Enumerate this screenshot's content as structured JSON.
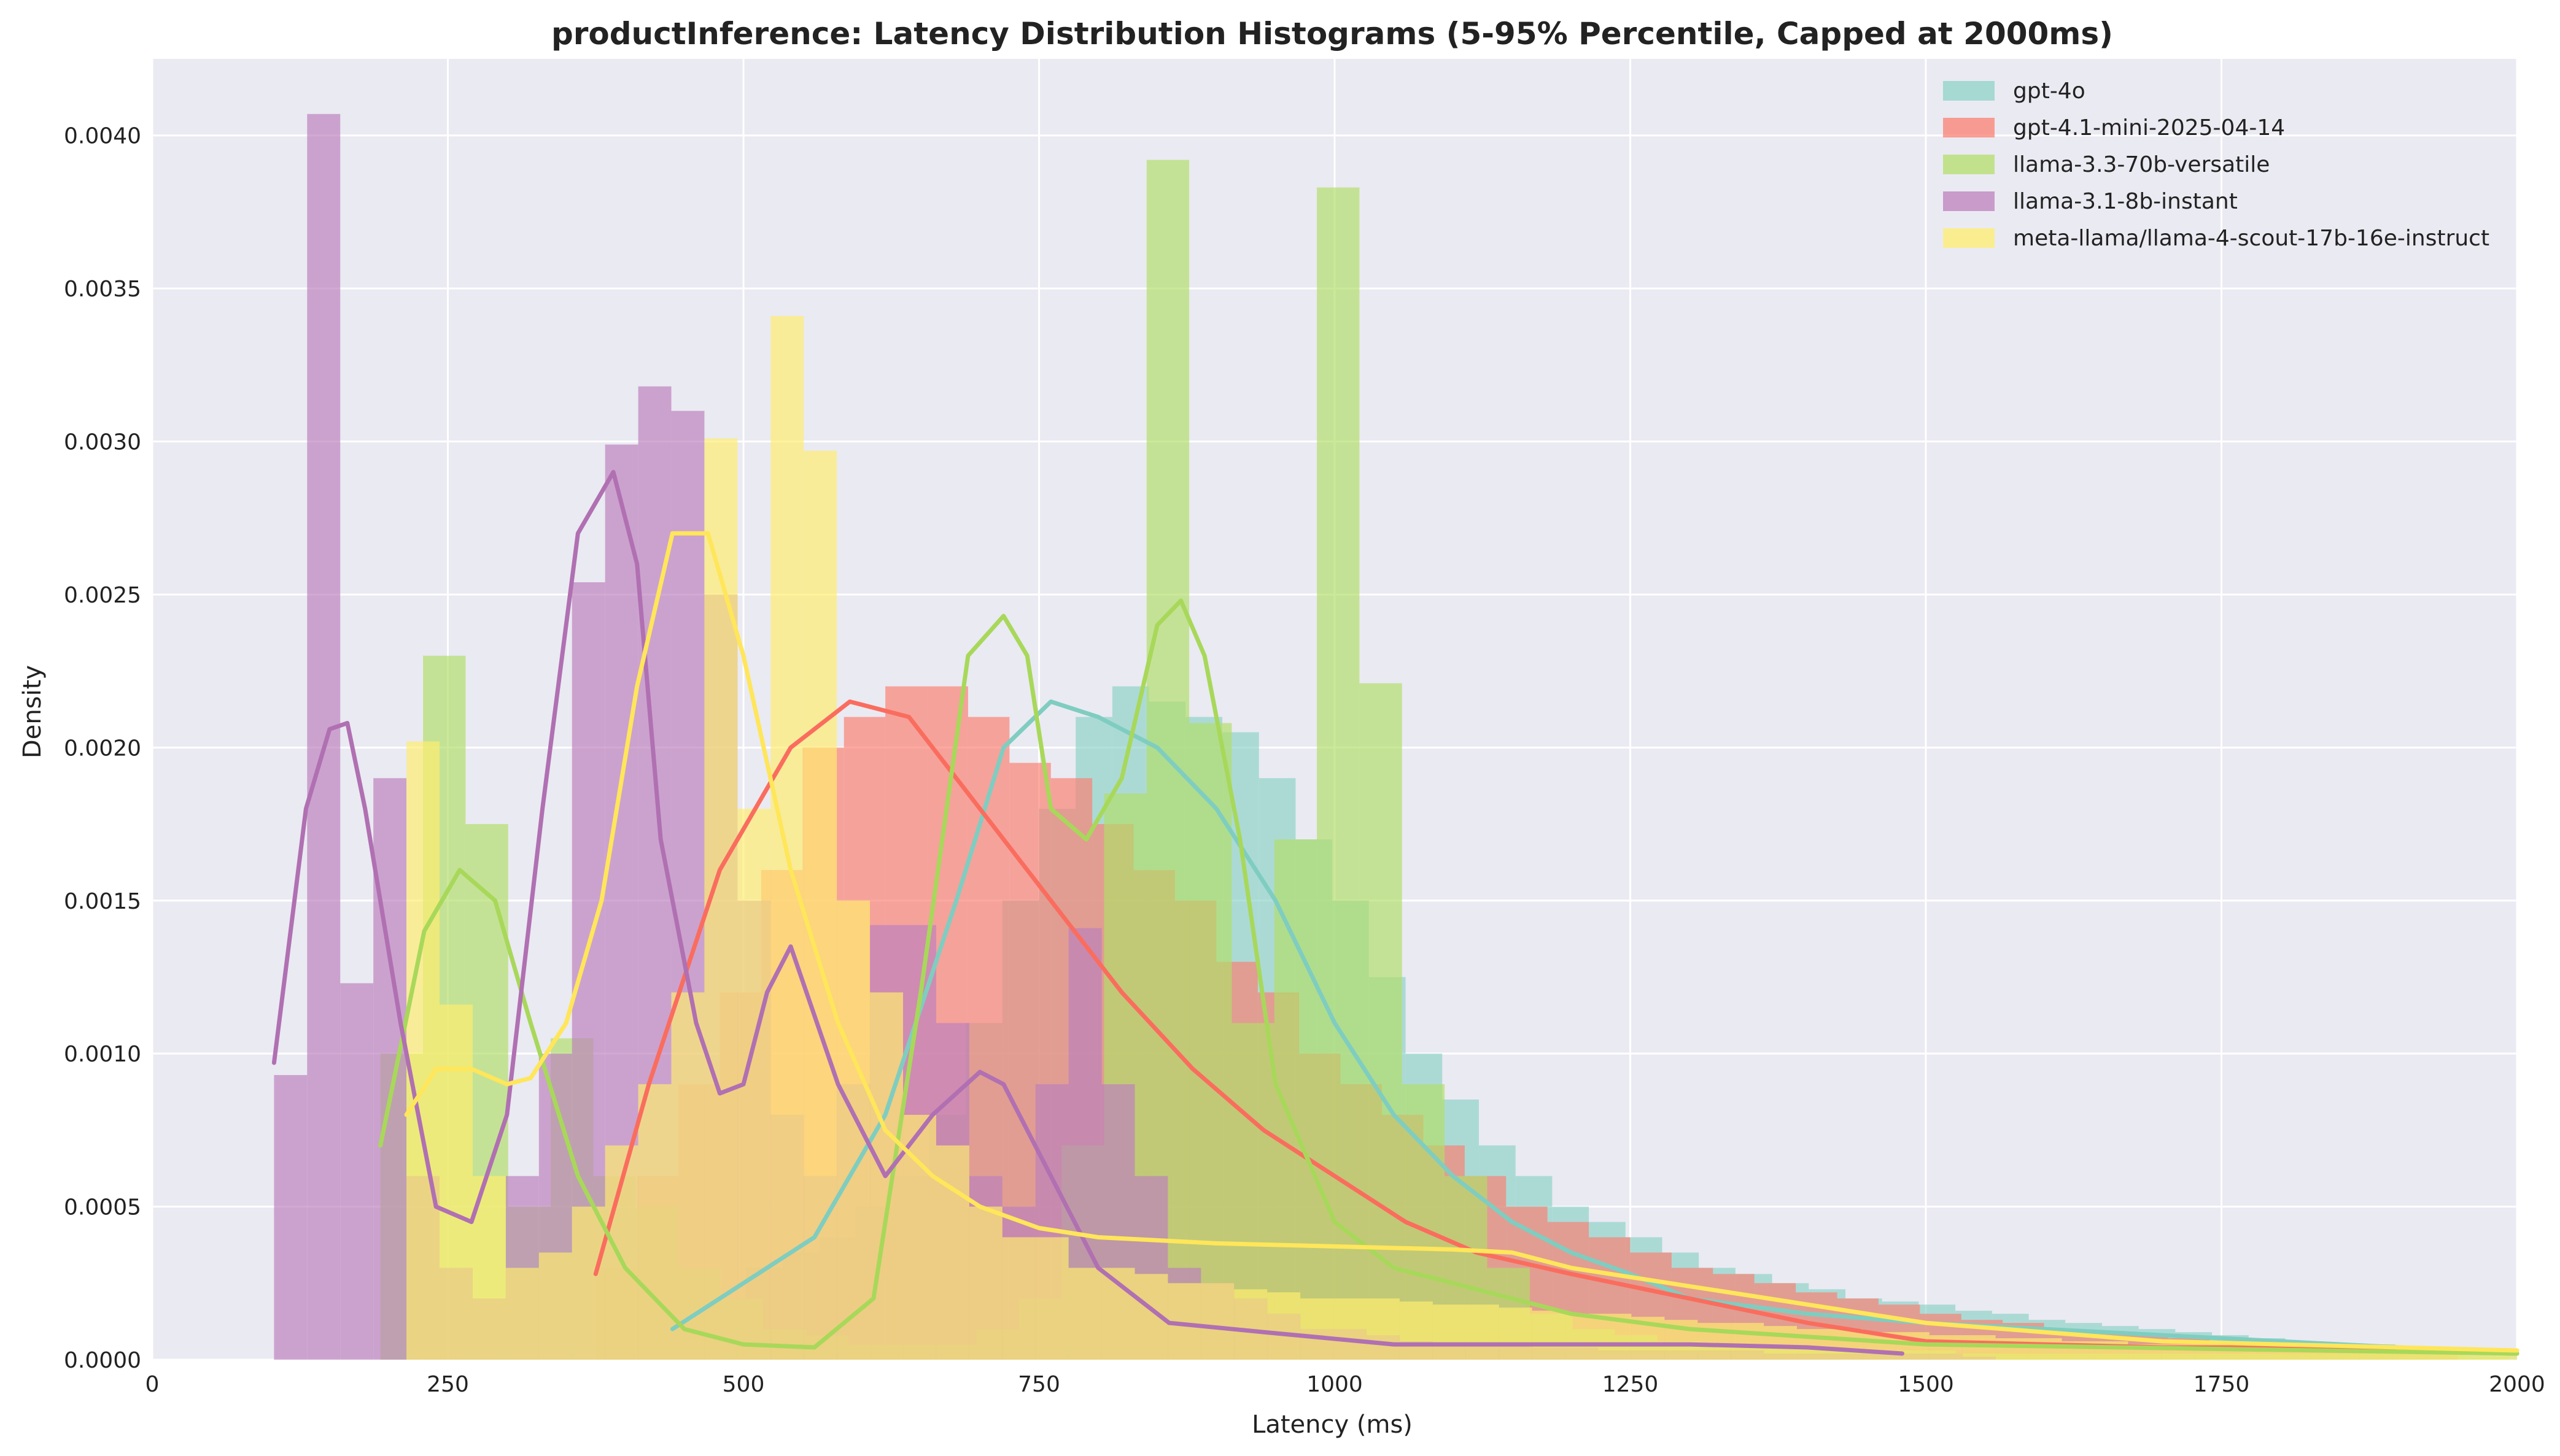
{
  "chart_data": {
    "type": "histogram",
    "title": "productInference: Latency Distribution Histograms (5-95% Percentile, Capped at 2000ms)",
    "xlabel": "Latency (ms)",
    "ylabel": "Density",
    "xlim": [
      0,
      2000
    ],
    "ylim": [
      0,
      0.00425
    ],
    "x_ticks": [
      0,
      250,
      500,
      750,
      1000,
      1250,
      1500,
      1750,
      2000
    ],
    "x_tick_labels": [
      "0",
      "250",
      "500",
      "750",
      "1000",
      "1250",
      "1500",
      "1750",
      "2000"
    ],
    "y_ticks": [
      0,
      0.0005,
      0.001,
      0.0015,
      0.002,
      0.0025,
      0.003,
      0.0035,
      0.004
    ],
    "y_tick_labels": [
      "0.0000",
      "0.0005",
      "0.0010",
      "0.0015",
      "0.0020",
      "0.0025",
      "0.0030",
      "0.0035",
      "0.0040"
    ],
    "grid": true,
    "legend_position": "top-right",
    "background_color": "#eaeaf2",
    "series": [
      {
        "name": "gpt-4o",
        "color": "#8dd3c7",
        "bin_start": 440,
        "bin_width": 31,
        "values": [
          0.0001,
          0.0002,
          0.0003,
          0.00035,
          0.0004,
          0.0005,
          0.0006,
          0.0008,
          0.0011,
          0.0015,
          0.0018,
          0.0021,
          0.0022,
          0.00215,
          0.0021,
          0.00205,
          0.0019,
          0.0017,
          0.0015,
          0.00125,
          0.001,
          0.00085,
          0.0007,
          0.0006,
          0.0005,
          0.00045,
          0.0004,
          0.00035,
          0.0003,
          0.00028,
          0.00025,
          0.00023,
          0.0002,
          0.00019,
          0.00018,
          0.00016,
          0.00015,
          0.00013,
          0.00012,
          0.00011,
          0.0001,
          9e-05,
          8e-05,
          7e-05,
          6e-05,
          5e-05,
          5e-05,
          4e-05,
          4e-05,
          3e-05,
          3e-05
        ],
        "kde_x": [
          440,
          500,
          560,
          620,
          680,
          720,
          760,
          800,
          850,
          900,
          950,
          1000,
          1050,
          1100,
          1150,
          1200,
          1250,
          1300,
          1400,
          1500,
          1600,
          1700,
          1800,
          1900,
          2000
        ],
        "kde_y": [
          0.0001,
          0.00025,
          0.0004,
          0.0008,
          0.0015,
          0.002,
          0.00215,
          0.0021,
          0.002,
          0.0018,
          0.0015,
          0.0011,
          0.0008,
          0.0006,
          0.00045,
          0.00035,
          0.00028,
          0.0002,
          0.00015,
          0.00012,
          0.0001,
          8e-05,
          6e-05,
          4e-05,
          2e-05
        ]
      },
      {
        "name": "gpt-4.1-mini-2025-04-14",
        "color": "#fb8072",
        "bin_start": 375,
        "bin_width": 35,
        "values": [
          0.0003,
          0.0006,
          0.0009,
          0.0012,
          0.0016,
          0.002,
          0.0021,
          0.0022,
          0.0022,
          0.0021,
          0.00195,
          0.0019,
          0.00175,
          0.0016,
          0.0015,
          0.0013,
          0.0012,
          0.001,
          0.0009,
          0.0008,
          0.0007,
          0.0006,
          0.0005,
          0.00045,
          0.0004,
          0.00035,
          0.0003,
          0.00028,
          0.00025,
          0.00022,
          0.0002,
          0.00018,
          0.00015,
          0.00013,
          0.00012,
          0.0001,
          9e-05,
          8e-05,
          7e-05,
          6e-05,
          5e-05,
          5e-05,
          4e-05,
          4e-05,
          3e-05
        ],
        "kde_x": [
          375,
          420,
          480,
          540,
          590,
          640,
          700,
          760,
          820,
          880,
          940,
          1000,
          1060,
          1120,
          1200,
          1300,
          1400,
          1500,
          1600,
          1700,
          1800,
          1900,
          2000
        ],
        "kde_y": [
          0.00028,
          0.0009,
          0.0016,
          0.002,
          0.00215,
          0.0021,
          0.0018,
          0.0015,
          0.0012,
          0.00095,
          0.00075,
          0.0006,
          0.00045,
          0.00035,
          0.00028,
          0.0002,
          0.00012,
          6e-05,
          5e-05,
          4e-05,
          4e-05,
          3e-05,
          2e-05
        ]
      },
      {
        "name": "llama-3.3-70b-versatile",
        "color": "#b3de69",
        "bin_start": 193,
        "bin_width": 36,
        "values": [
          0.001,
          0.0023,
          0.00175,
          0.0005,
          0.00105,
          0.0006,
          0.0005,
          0.0003,
          0.0002,
          0.0001,
          8e-05,
          5e-05,
          5e-05,
          5e-05,
          0.0001,
          0.0002,
          0.0007,
          0.00185,
          0.00392,
          0.00208,
          0.0011,
          0.0017,
          0.00383,
          0.00221,
          0.0009,
          0.0006,
          0.0003,
          0.00015,
          0.0001,
          8e-05,
          6e-05,
          5e-05,
          4e-05,
          4e-05,
          3e-05,
          3e-05,
          3e-05,
          2e-05,
          2e-05,
          2e-05,
          2e-05,
          2e-05,
          2e-05,
          2e-05,
          2e-05,
          2e-05,
          2e-05,
          2e-05,
          2e-05,
          1e-05
        ],
        "kde_x": [
          193,
          230,
          260,
          290,
          320,
          360,
          400,
          450,
          500,
          560,
          610,
          650,
          690,
          720,
          740,
          760,
          790,
          820,
          850,
          870,
          890,
          920,
          950,
          1000,
          1050,
          1100,
          1200,
          1300,
          1500,
          2000
        ],
        "kde_y": [
          0.0007,
          0.0014,
          0.0016,
          0.0015,
          0.0011,
          0.0006,
          0.0003,
          0.0001,
          5e-05,
          4e-05,
          0.0002,
          0.0012,
          0.0023,
          0.00243,
          0.0023,
          0.0018,
          0.0017,
          0.0019,
          0.0024,
          0.00248,
          0.0023,
          0.0017,
          0.0009,
          0.00045,
          0.0003,
          0.00025,
          0.00015,
          0.0001,
          5e-05,
          2e-05
        ]
      },
      {
        "name": "llama-3.1-8b-instant",
        "color": "#bc80bd",
        "bin_start": 103,
        "bin_width": 28,
        "values": [
          0.00093,
          0.00407,
          0.00123,
          0.0019,
          0.0006,
          0.0003,
          0.0002,
          0.0006,
          0.001,
          0.00254,
          0.00299,
          0.00318,
          0.0031,
          0.0025,
          0.0015,
          0.0008,
          0.0006,
          0.0009,
          0.00142,
          0.00142,
          0.0011,
          0.0006,
          0.0005,
          0.0009,
          0.00141,
          0.0009,
          0.0006,
          0.0003,
          0.00025,
          0.0002,
          0.00015,
          0.0001,
          0.0001,
          8e-05,
          6e-05,
          5e-05,
          5e-05,
          5e-05,
          4e-05,
          4e-05,
          3e-05,
          3e-05,
          3e-05,
          3e-05,
          3e-05,
          2e-05,
          2e-05,
          2e-05,
          2e-05,
          2e-05,
          2e-05,
          1e-05
        ],
        "kde_x": [
          103,
          130,
          150,
          165,
          180,
          210,
          240,
          270,
          300,
          330,
          360,
          390,
          410,
          430,
          460,
          480,
          500,
          520,
          540,
          580,
          620,
          660,
          700,
          720,
          760,
          800,
          860,
          940,
          1050,
          1200,
          1300,
          1400,
          1480
        ],
        "kde_y": [
          0.00097,
          0.0018,
          0.00206,
          0.00208,
          0.0018,
          0.0011,
          0.0005,
          0.00045,
          0.0008,
          0.0018,
          0.0027,
          0.0029,
          0.0026,
          0.0017,
          0.0011,
          0.00087,
          0.0009,
          0.0012,
          0.00135,
          0.0009,
          0.0006,
          0.0008,
          0.00094,
          0.0009,
          0.0006,
          0.0003,
          0.00012,
          9e-05,
          5e-05,
          5e-05,
          5e-05,
          4e-05,
          2e-05
        ]
      },
      {
        "name": "meta-llama/llama-4-scout-17b-16e-instruct",
        "color": "#ffed6f",
        "bin_start": 215,
        "bin_width": 28,
        "values": [
          0.00202,
          0.00116,
          0.0006,
          0.0003,
          0.00035,
          0.0005,
          0.0007,
          0.0009,
          0.0012,
          0.00301,
          0.0018,
          0.00341,
          0.00297,
          0.0015,
          0.0012,
          0.0008,
          0.0007,
          0.0005,
          0.0004,
          0.0004,
          0.0003,
          0.0003,
          0.00028,
          0.00025,
          0.00025,
          0.00023,
          0.00022,
          0.0002,
          0.0002,
          0.0002,
          0.00019,
          0.00018,
          0.00018,
          0.00017,
          0.00016,
          0.00015,
          0.00015,
          0.00014,
          0.00013,
          0.00012,
          0.00012,
          0.00011,
          0.0001,
          0.0001,
          9e-05,
          9e-05,
          8e-05,
          8e-05,
          7e-05,
          7e-05,
          6e-05,
          6e-05,
          5e-05,
          5e-05,
          5e-05,
          4e-05,
          4e-05,
          4e-05,
          3e-05,
          3e-05,
          3e-05,
          3e-05,
          2e-05,
          2e-05
        ],
        "kde_x": [
          215,
          240,
          270,
          300,
          320,
          350,
          380,
          410,
          440,
          470,
          500,
          540,
          580,
          620,
          660,
          700,
          750,
          800,
          900,
          1000,
          1100,
          1150,
          1200,
          1300,
          1400,
          1500,
          1600,
          1700,
          1800,
          1900,
          2000
        ],
        "kde_y": [
          0.0008,
          0.00095,
          0.00095,
          0.0009,
          0.00092,
          0.0011,
          0.0015,
          0.0022,
          0.0027,
          0.0027,
          0.0023,
          0.0016,
          0.0011,
          0.00075,
          0.0006,
          0.0005,
          0.00043,
          0.0004,
          0.00038,
          0.00037,
          0.00036,
          0.00035,
          0.0003,
          0.00024,
          0.00018,
          0.00012,
          9e-05,
          6e-05,
          5e-05,
          4e-05,
          3e-05
        ]
      }
    ]
  }
}
